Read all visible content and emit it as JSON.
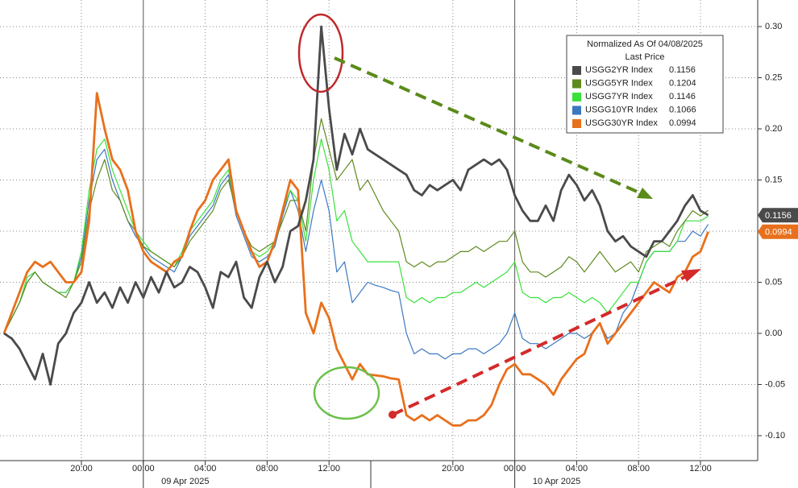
{
  "chart_data": {
    "type": "line",
    "legend_title": "Normalized As Of 04/08/2025",
    "legend_subtitle": "Last Price",
    "legend_position": "upper-right",
    "grid": true,
    "categories": [
      null,
      null,
      null,
      null,
      null,
      null,
      null,
      null,
      null,
      null,
      "20:00",
      null,
      null,
      null,
      null,
      null,
      null,
      null,
      "00:00",
      null,
      null,
      null,
      null,
      null,
      null,
      null,
      "04:00",
      null,
      null,
      null,
      null,
      null,
      null,
      null,
      "08:00",
      null,
      null,
      null,
      null,
      null,
      null,
      null,
      "12:00",
      null,
      null,
      null,
      null,
      null,
      null,
      null,
      null,
      null,
      null,
      null,
      null,
      null,
      null,
      null,
      "20:00",
      null,
      null,
      null,
      null,
      null,
      null,
      null,
      "00:00",
      null,
      null,
      null,
      null,
      null,
      null,
      null,
      "04:00",
      null,
      null,
      null,
      null,
      null,
      null,
      null,
      "08:00",
      null,
      null,
      null,
      null,
      null,
      null,
      null,
      "12:00",
      null
    ],
    "date_labels": [
      "09 Apr 2025",
      "10 Apr 2025"
    ],
    "ylim": [
      -0.12,
      0.32
    ],
    "yticks": [
      {
        "value": -0.1,
        "label": "-0.10"
      },
      -0.05,
      {
        "value": 0,
        "label": "0.00"
      },
      0.05,
      {
        "value": 0.1,
        "label": "0.10"
      },
      0.15,
      {
        "value": 0.2,
        "label": "0.20"
      },
      0.25,
      {
        "value": 0.3,
        "label": "0.30"
      }
    ],
    "series": [
      {
        "name": "USGG2YR Index",
        "color": "#4a4a4a",
        "values": [
          0,
          -0.005,
          -0.015,
          -0.03,
          -0.045,
          -0.02,
          -0.05,
          -0.01,
          0,
          0.02,
          0.03,
          0.05,
          0.03,
          0.04,
          0.025,
          0.045,
          0.03,
          0.05,
          0.035,
          0.055,
          0.04,
          0.06,
          0.045,
          0.05,
          0.065,
          0.06,
          0.045,
          0.025,
          0.06,
          0.055,
          0.07,
          0.035,
          0.025,
          0.055,
          0.07,
          0.05,
          0.065,
          0.1,
          0.105,
          0.13,
          0.17,
          0.3,
          0.22,
          0.16,
          0.195,
          0.175,
          0.2,
          0.18,
          0.175,
          0.17,
          0.165,
          0.16,
          0.155,
          0.14,
          0.135,
          0.145,
          0.14,
          0.145,
          0.15,
          0.14,
          0.16,
          0.165,
          0.17,
          0.165,
          0.17,
          0.16,
          0.135,
          0.12,
          0.11,
          0.11,
          0.125,
          0.11,
          0.14,
          0.155,
          0.145,
          0.13,
          0.14,
          0.125,
          0.1,
          0.09,
          0.095,
          0.085,
          0.08,
          0.075,
          0.09,
          0.09,
          0.1,
          0.11,
          0.125,
          0.135,
          0.12,
          0.1156
        ]
      },
      {
        "name": "USGG5YR Index",
        "color": "#5e8a1e",
        "values": [
          0,
          0.015,
          0.03,
          0.05,
          0.06,
          0.05,
          0.045,
          0.04,
          0.035,
          0.05,
          0.07,
          0.12,
          0.15,
          0.17,
          0.14,
          0.13,
          0.11,
          0.1,
          0.085,
          0.08,
          0.075,
          0.07,
          0.065,
          0.075,
          0.09,
          0.1,
          0.11,
          0.12,
          0.14,
          0.15,
          0.12,
          0.1,
          0.085,
          0.08,
          0.085,
          0.09,
          0.11,
          0.13,
          0.13,
          0.1,
          0.17,
          0.21,
          0.18,
          0.15,
          0.16,
          0.17,
          0.14,
          0.15,
          0.135,
          0.12,
          0.11,
          0.1,
          0.07,
          0.065,
          0.07,
          0.065,
          0.07,
          0.07,
          0.075,
          0.08,
          0.08,
          0.085,
          0.08,
          0.085,
          0.09,
          0.09,
          0.1,
          0.07,
          0.06,
          0.06,
          0.055,
          0.06,
          0.065,
          0.075,
          0.07,
          0.06,
          0.07,
          0.08,
          0.07,
          0.06,
          0.065,
          0.07,
          0.06,
          0.08,
          0.085,
          0.09,
          0.085,
          0.1,
          0.11,
          0.12,
          0.115,
          0.1204
        ]
      },
      {
        "name": "USGG7YR Index",
        "color": "#39e13a",
        "values": [
          0,
          0.015,
          0.03,
          0.055,
          0.06,
          0.05,
          0.045,
          0.04,
          0.04,
          0.05,
          0.08,
          0.14,
          0.18,
          0.19,
          0.16,
          0.14,
          0.12,
          0.1,
          0.09,
          0.08,
          0.075,
          0.07,
          0.065,
          0.08,
          0.1,
          0.11,
          0.12,
          0.13,
          0.15,
          0.16,
          0.12,
          0.1,
          0.08,
          0.075,
          0.08,
          0.09,
          0.12,
          0.14,
          0.13,
          0.09,
          0.15,
          0.19,
          0.16,
          0.11,
          0.12,
          0.09,
          0.08,
          0.07,
          0.07,
          0.07,
          0.07,
          0.07,
          0.035,
          0.03,
          0.035,
          0.03,
          0.035,
          0.035,
          0.04,
          0.04,
          0.045,
          0.05,
          0.045,
          0.05,
          0.055,
          0.06,
          0.07,
          0.04,
          0.035,
          0.035,
          0.03,
          0.035,
          0.035,
          0.04,
          0.035,
          0.03,
          0.035,
          0.03,
          0.02,
          0.03,
          0.04,
          0.05,
          0.05,
          0.07,
          0.08,
          0.08,
          0.08,
          0.09,
          0.11,
          0.11,
          0.11,
          0.1146
        ]
      },
      {
        "name": "USGG10YR Index",
        "color": "#3b78c0",
        "values": [
          0,
          0.015,
          0.03,
          0.05,
          0.06,
          0.05,
          0.045,
          0.04,
          0.04,
          0.05,
          0.075,
          0.13,
          0.17,
          0.18,
          0.15,
          0.13,
          0.11,
          0.095,
          0.085,
          0.075,
          0.07,
          0.065,
          0.06,
          0.075,
          0.095,
          0.105,
          0.115,
          0.125,
          0.145,
          0.155,
          0.115,
          0.095,
          0.075,
          0.07,
          0.075,
          0.085,
          0.115,
          0.14,
          0.12,
          0.08,
          0.12,
          0.15,
          0.12,
          0.06,
          0.07,
          0.03,
          0.04,
          0.05,
          0.047,
          0.045,
          0.042,
          0.04,
          0,
          -0.02,
          -0.015,
          -0.02,
          -0.02,
          -0.025,
          -0.02,
          -0.02,
          -0.015,
          -0.015,
          -0.02,
          -0.015,
          -0.01,
          0,
          0.02,
          -0.005,
          -0.01,
          -0.01,
          -0.015,
          -0.01,
          -0.005,
          0,
          0,
          -0.005,
          0,
          0.01,
          -0.005,
          0,
          0.02,
          0.03,
          0.05,
          0.07,
          0.08,
          0.08,
          0.08,
          0.09,
          0.09,
          0.1,
          0.095,
          0.1066
        ]
      },
      {
        "name": "USGG30YR Index",
        "color": "#e8701c",
        "values": [
          0,
          0.02,
          0.04,
          0.06,
          0.07,
          0.065,
          0.07,
          0.06,
          0.05,
          0.05,
          0.06,
          0.11,
          0.235,
          0.2,
          0.17,
          0.16,
          0.14,
          0.1,
          0.08,
          0.07,
          0.065,
          0.06,
          0.07,
          0.075,
          0.1,
          0.12,
          0.13,
          0.15,
          0.16,
          0.17,
          0.12,
          0.1,
          0.08,
          0.065,
          0.07,
          0.09,
          0.12,
          0.15,
          0.14,
          0.02,
          0,
          0.03,
          0.015,
          -0.015,
          -0.03,
          -0.045,
          -0.03,
          -0.04,
          -0.041,
          -0.042,
          -0.044,
          -0.045,
          -0.08,
          -0.085,
          -0.08,
          -0.085,
          -0.08,
          -0.085,
          -0.09,
          -0.09,
          -0.085,
          -0.085,
          -0.08,
          -0.07,
          -0.05,
          -0.035,
          -0.03,
          -0.04,
          -0.04,
          -0.045,
          -0.05,
          -0.06,
          -0.045,
          -0.035,
          -0.025,
          -0.02,
          0,
          0.01,
          -0.01,
          0,
          0.01,
          0.02,
          0.03,
          0.04,
          0.05,
          0.045,
          0.04,
          0.055,
          0.06,
          0.075,
          0.08,
          0.0994
        ]
      }
    ]
  }
}
